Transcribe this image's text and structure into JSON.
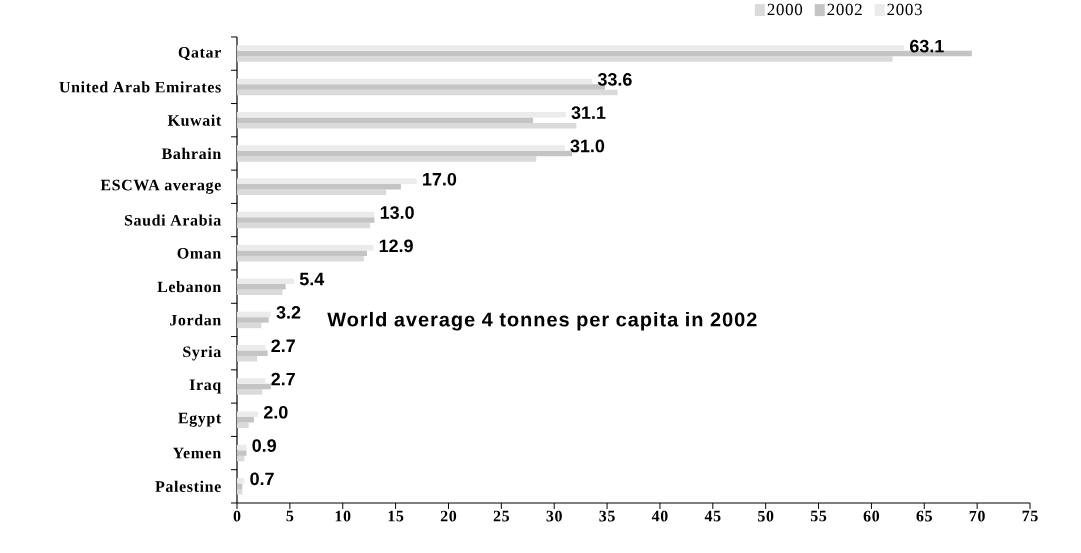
{
  "chart_data": {
    "type": "bar",
    "orientation": "horizontal",
    "categories": [
      "Qatar",
      "United Arab Emirates",
      "Kuwait",
      "Bahrain",
      "ESCWA average",
      "Saudi Arabia",
      "Oman",
      "Lebanon",
      "Jordan",
      "Syria",
      "Iraq",
      "Egypt",
      "Yemen",
      "Palestine"
    ],
    "series": [
      {
        "name": "2000",
        "color": "#dadada",
        "values": [
          62.0,
          36.0,
          32.1,
          28.3,
          14.1,
          12.6,
          12.0,
          4.3,
          2.3,
          1.9,
          2.4,
          1.1,
          0.7,
          0.5
        ]
      },
      {
        "name": "2002",
        "color": "#c4c4c4",
        "values": [
          69.5,
          34.8,
          28.0,
          31.7,
          15.5,
          13.0,
          12.3,
          4.6,
          3.0,
          2.9,
          3.2,
          1.6,
          0.9,
          0.5
        ]
      },
      {
        "name": "2003",
        "color": "#ebebeb",
        "values": [
          63.1,
          33.6,
          31.1,
          31.0,
          17.0,
          13.0,
          12.9,
          5.4,
          3.2,
          2.7,
          2.7,
          2.0,
          0.9,
          0.7
        ],
        "value_labels": [
          "63.1",
          "33.6",
          "31.1",
          "31.0",
          "17.0",
          "13.0",
          "12.9",
          "5.4",
          "3.2",
          "2.7",
          "2.7",
          "2.0",
          "0.9",
          "0.7"
        ]
      }
    ],
    "xlim": [
      0,
      75
    ],
    "xticks": [
      0,
      5,
      10,
      15,
      20,
      25,
      30,
      35,
      40,
      45,
      50,
      55,
      60,
      65,
      70,
      75
    ],
    "legend": "top",
    "annotations": [
      "World average 4 tonnes per capita in 2002"
    ]
  }
}
